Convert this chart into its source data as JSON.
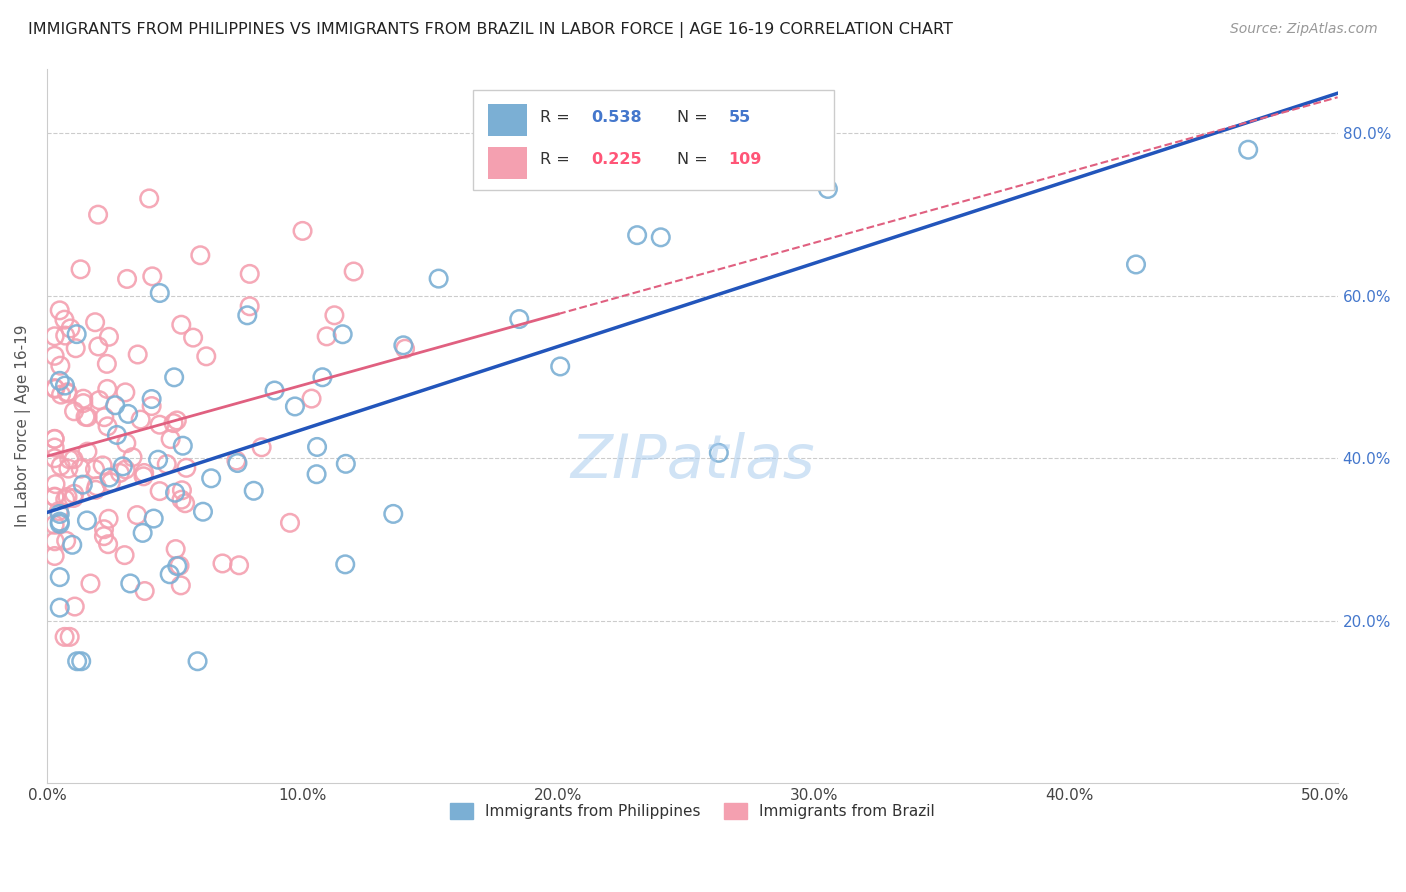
{
  "title": "IMMIGRANTS FROM PHILIPPINES VS IMMIGRANTS FROM BRAZIL IN LABOR FORCE | AGE 16-19 CORRELATION CHART",
  "source": "Source: ZipAtlas.com",
  "ylabel_label": "In Labor Force | Age 16-19",
  "philippines_R": 0.538,
  "philippines_N": 55,
  "brazil_R": 0.225,
  "brazil_N": 109,
  "philippines_color": "#7BAFD4",
  "brazil_color": "#F4A0B0",
  "philippines_line_color": "#2255BB",
  "brazil_line_color": "#E06080",
  "watermark": "ZIPatlas",
  "xlim": [
    0.0,
    0.505
  ],
  "ylim": [
    0.0,
    0.88
  ],
  "ytick_vals": [
    0.2,
    0.4,
    0.6,
    0.8
  ],
  "ytick_labels": [
    "20.0%",
    "40.0%",
    "60.0%",
    "80.0%"
  ],
  "xtick_vals": [
    0.0,
    0.1,
    0.2,
    0.3,
    0.4,
    0.5
  ],
  "xtick_labels": [
    "0.0%",
    "10.0%",
    "20.0%",
    "30.0%",
    "40.0%",
    "50.0%"
  ],
  "legend_R1": "0.538",
  "legend_N1": "55",
  "legend_R2": "0.225",
  "legend_N2": "109",
  "legend_color1": "#4477CC",
  "legend_color2": "#FF5577",
  "bottom_legend1": "Immigrants from Philippines",
  "bottom_legend2": "Immigrants from Brazil",
  "phil_seed": 12,
  "braz_seed": 99
}
